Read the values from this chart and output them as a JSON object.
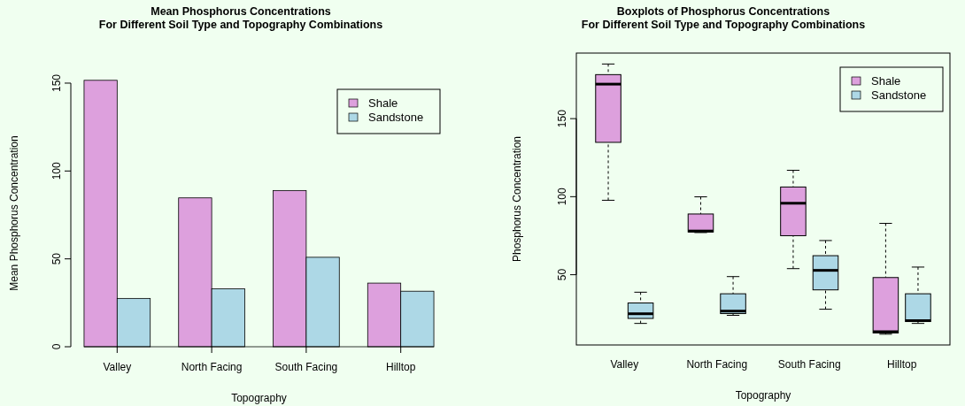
{
  "chart_data": [
    {
      "type": "bar",
      "title": "Mean Phosphorus Concentrations\nFor Different Soil Type and Topography Combinations",
      "xlabel": "Topography",
      "ylabel": "Mean Phosphorus Concentration",
      "categories": [
        "Valley",
        "North Facing",
        "South Facing",
        "Hilltop"
      ],
      "series": [
        {
          "name": "Shale",
          "color": "#dda0dd",
          "values": [
            151.6,
            84.7,
            88.9,
            36.2
          ]
        },
        {
          "name": "Sandstone",
          "color": "#add8e6",
          "values": [
            27.5,
            33.0,
            50.9,
            31.6
          ]
        }
      ],
      "ylim": [
        0,
        152
      ],
      "yticks": [
        0,
        50,
        100,
        150
      ],
      "legend": "top right",
      "grid": false
    },
    {
      "type": "box",
      "title": "Boxplots of Phosphorus Concentrations\nFor Different Soil Type and Topography Combinations",
      "xlabel": "Topography",
      "ylabel": "Phosphorus Concentration",
      "categories": [
        "Valley",
        "North Facing",
        "South Facing",
        "Hilltop"
      ],
      "series": [
        {
          "name": "Shale",
          "color": "#dda0dd",
          "boxes": [
            {
              "low": 97.7,
              "q1": 134.8,
              "median": 172.1,
              "q3": 178.2,
              "high": 185
            },
            {
              "low": 77,
              "q1": 77.4,
              "median": 78,
              "q3": 88.9,
              "high": 99.9
            },
            {
              "low": 53.9,
              "q1": 75,
              "median": 95.8,
              "q3": 106.2,
              "high": 116.9
            },
            {
              "low": 11.9,
              "q1": 12.7,
              "median": 13.5,
              "q3": 48.2,
              "high": 82.9
            }
          ]
        },
        {
          "name": "Sandstone",
          "color": "#add8e6",
          "boxes": [
            {
              "low": 18.8,
              "q1": 22,
              "median": 25,
              "q3": 31.9,
              "high": 38.8
            },
            {
              "low": 24,
              "q1": 25.1,
              "median": 26.7,
              "q3": 37.8,
              "high": 48.8
            },
            {
              "low": 27.9,
              "q1": 40.3,
              "median": 52.8,
              "q3": 62.2,
              "high": 71.9
            },
            {
              "low": 18.8,
              "q1": 20,
              "median": 20.6,
              "q3": 37.8,
              "high": 54.9
            }
          ]
        }
      ],
      "ylim": [
        5,
        192
      ],
      "yticks": [
        50,
        100,
        150
      ],
      "legend": "top right",
      "grid": false
    }
  ]
}
